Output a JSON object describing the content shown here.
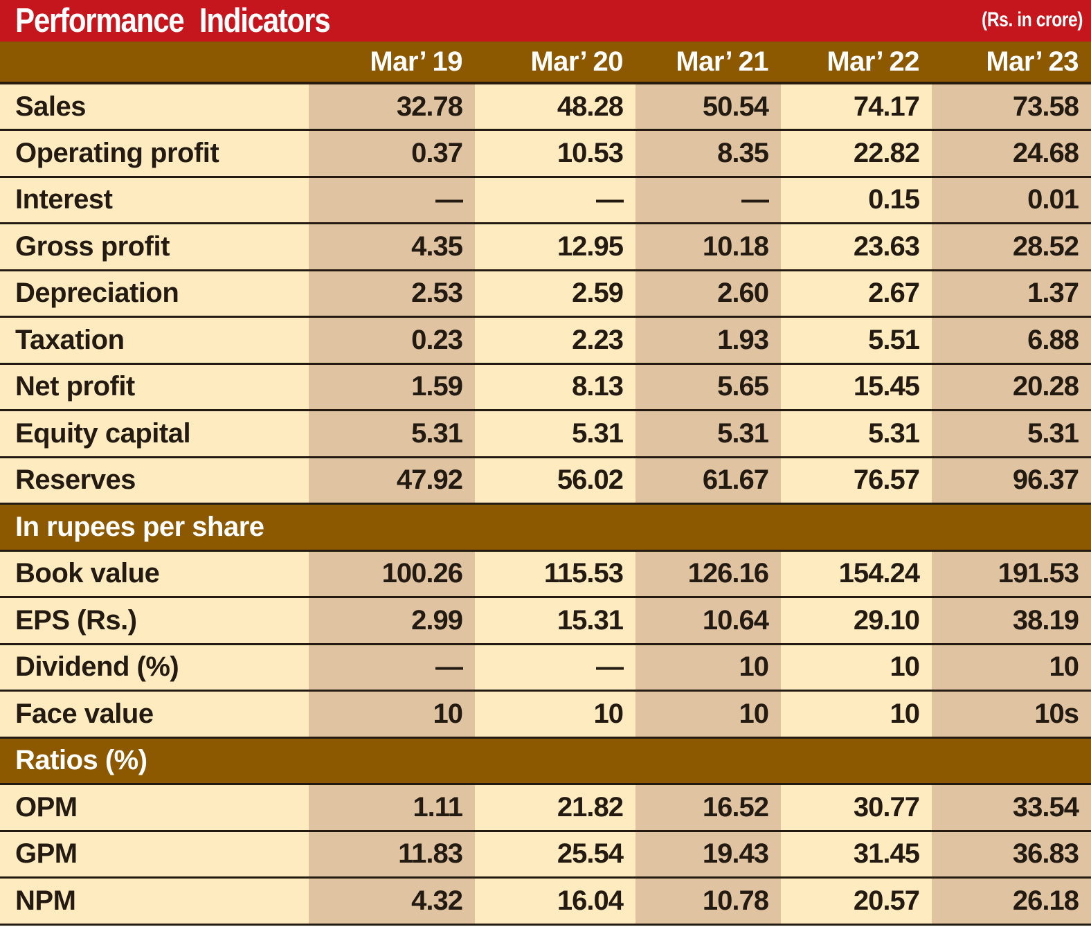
{
  "header": {
    "title": "Performance  Indicators",
    "unit": "(Rs. in crore)"
  },
  "columns": [
    "Mar’ 19",
    "Mar’ 20",
    "Mar’ 21",
    "Mar’ 22",
    "Mar’ 23"
  ],
  "sections": [
    {
      "title": "",
      "rows": [
        {
          "label": "Sales",
          "values": [
            "32.78",
            "48.28",
            "50.54",
            "74.17",
            "73.58"
          ]
        },
        {
          "label": "Operating profit",
          "values": [
            "0.37",
            "10.53",
            "8.35",
            "22.82",
            "24.68"
          ]
        },
        {
          "label": "Interest",
          "values": [
            "—",
            "—",
            "—",
            "0.15",
            "0.01"
          ]
        },
        {
          "label": "Gross profit",
          "values": [
            "4.35",
            "12.95",
            "10.18",
            "23.63",
            "28.52"
          ]
        },
        {
          "label": "Depreciation",
          "values": [
            "2.53",
            "2.59",
            "2.60",
            "2.67",
            "1.37"
          ]
        },
        {
          "label": "Taxation",
          "values": [
            "0.23",
            "2.23",
            "1.93",
            "5.51",
            "6.88"
          ]
        },
        {
          "label": "Net profit",
          "values": [
            "1.59",
            "8.13",
            "5.65",
            "15.45",
            "20.28"
          ]
        },
        {
          "label": "Equity capital",
          "values": [
            "5.31",
            "5.31",
            "5.31",
            "5.31",
            "5.31"
          ]
        },
        {
          "label": "Reserves",
          "values": [
            "47.92",
            "56.02",
            "61.67",
            "76.57",
            "96.37"
          ]
        }
      ]
    },
    {
      "title": "In rupees per share",
      "rows": [
        {
          "label": "Book value",
          "values": [
            "100.26",
            "115.53",
            "126.16",
            "154.24",
            "191.53"
          ]
        },
        {
          "label": "EPS (Rs.)",
          "values": [
            "2.99",
            "15.31",
            "10.64",
            "29.10",
            "38.19"
          ]
        },
        {
          "label": "Dividend (%)",
          "values": [
            "—",
            "—",
            "10",
            "10",
            "10"
          ]
        },
        {
          "label": "Face  value",
          "values": [
            "10",
            "10",
            "10",
            "10",
            "10s"
          ]
        }
      ]
    },
    {
      "title": "Ratios (%)",
      "rows": [
        {
          "label": "OPM",
          "values": [
            "1.11",
            "21.82",
            "16.52",
            "30.77",
            "33.54"
          ]
        },
        {
          "label": "GPM",
          "values": [
            "11.83",
            "25.54",
            "19.43",
            "31.45",
            "36.83"
          ]
        },
        {
          "label": "NPM",
          "values": [
            "4.32",
            "16.04",
            "10.78",
            "20.57",
            "26.18"
          ]
        }
      ]
    }
  ],
  "colors": {
    "title_bar": "#c4161c",
    "header_band": "#8c5800",
    "cell_light": "#feecc0",
    "cell_dark": "#e0c4a2",
    "rule": "#231a12"
  }
}
